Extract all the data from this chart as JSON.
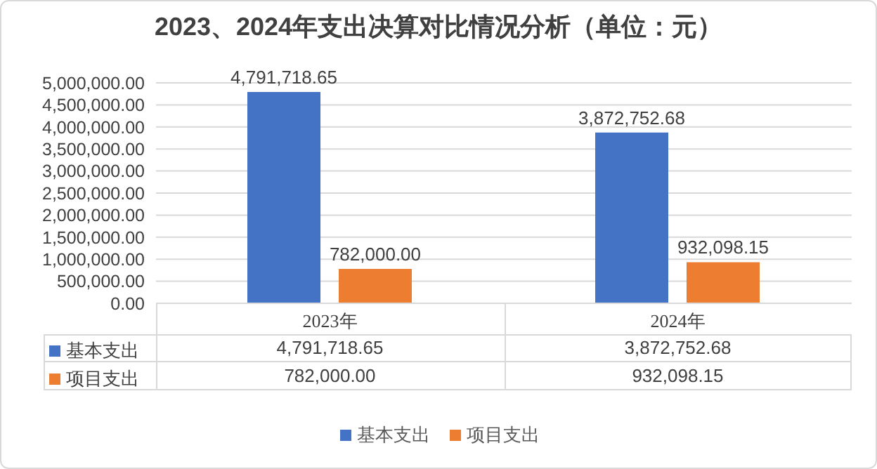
{
  "chart_data": {
    "type": "bar",
    "title": "2023、2024年支出决算对比情况分析（单位：元）",
    "categories": [
      "2023年",
      "2024年"
    ],
    "series": [
      {
        "name": "基本支出",
        "color": "#4472c4",
        "values": [
          4791718.65,
          3872752.68
        ],
        "value_labels": [
          "4,791,718.65",
          "3,872,752.68"
        ]
      },
      {
        "name": "项目支出",
        "color": "#ed7d31",
        "values": [
          782000,
          932098.15
        ],
        "value_labels": [
          "782,000.00",
          "932,098.15"
        ]
      }
    ],
    "ylim": [
      0,
      5000000
    ],
    "yticks": [
      {
        "value": 0,
        "label": "0.00"
      },
      {
        "value": 500000,
        "label": "500,000.00"
      },
      {
        "value": 1000000,
        "label": "1,000,000.00"
      },
      {
        "value": 1500000,
        "label": "1,500,000.00"
      },
      {
        "value": 2000000,
        "label": "2,000,000.00"
      },
      {
        "value": 2500000,
        "label": "2,500,000.00"
      },
      {
        "value": 3000000,
        "label": "3,000,000.00"
      },
      {
        "value": 3500000,
        "label": "3,500,000.00"
      },
      {
        "value": 4000000,
        "label": "4,000,000.00"
      },
      {
        "value": 4500000,
        "label": "4,500,000.00"
      },
      {
        "value": 5000000,
        "label": "5,000,000.00"
      }
    ],
    "grid": "y",
    "legend": "bottom"
  }
}
